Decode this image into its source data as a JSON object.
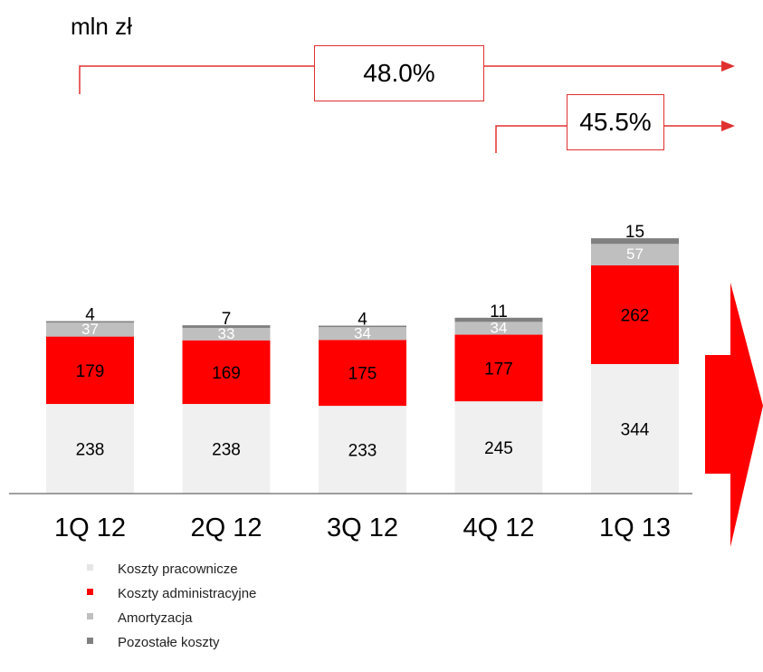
{
  "unit_label": "mln zł",
  "ratios": [
    {
      "label": "48.0%"
    },
    {
      "label": "45.5%"
    }
  ],
  "colors": {
    "koszty_pracownicze": "#f0f0f0",
    "koszty_administracyjne": "#ff0000",
    "amortyzacja": "#bfbfbf",
    "pozostale_koszty": "#808080",
    "accent": "#e03030"
  },
  "chart_data": {
    "type": "bar",
    "stacked": true,
    "categories": [
      "1Q 12",
      "2Q 12",
      "3Q 12",
      "4Q 12",
      "1Q 13"
    ],
    "series": [
      {
        "name": "Koszty pracownicze",
        "values": [
          238,
          238,
          233,
          245,
          344
        ],
        "color": "#f0f0f0",
        "label_color": "#000000"
      },
      {
        "name": "Koszty administracyjne",
        "values": [
          179,
          169,
          175,
          177,
          262
        ],
        "color": "#ff0000",
        "label_color": "#000000"
      },
      {
        "name": "Amortyzacja",
        "values": [
          37,
          33,
          34,
          34,
          57
        ],
        "color": "#bfbfbf",
        "label_color": "#ffffff"
      },
      {
        "name": "Pozostałe koszty",
        "values": [
          4,
          7,
          4,
          11,
          15
        ],
        "color": "#808080",
        "label_color": "#000000"
      }
    ],
    "title": "",
    "xlabel": "",
    "ylabel": "",
    "grid": false,
    "legend": "bottom-left"
  }
}
